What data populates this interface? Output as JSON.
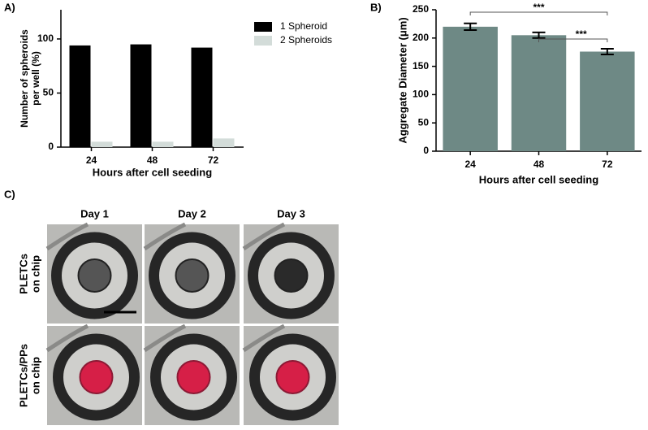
{
  "chart_data": [
    {
      "type": "bar",
      "panel_label": "A)",
      "categories": [
        "24",
        "48",
        "72"
      ],
      "series": [
        {
          "name": "1 Spheroid",
          "color": "#000000",
          "values": [
            94,
            95,
            92
          ]
        },
        {
          "name": "2 Spheroids",
          "color": "#d3dcd9",
          "values": [
            5,
            5,
            8
          ]
        }
      ],
      "ylim": [
        0,
        127
      ],
      "yticks": [
        0,
        50,
        100
      ],
      "ylabel": [
        "Number of spheroids",
        "per well (%)"
      ],
      "xlabel": "Hours after cell seeding",
      "legend": "top-right"
    },
    {
      "type": "bar",
      "panel_label": "B)",
      "categories": [
        "24",
        "48",
        "72"
      ],
      "values": [
        220,
        205,
        176
      ],
      "errors": [
        6,
        5,
        5
      ],
      "color": "#6e8985",
      "ylim": [
        0,
        250
      ],
      "yticks": [
        0,
        50,
        100,
        150,
        200,
        250
      ],
      "ylabel": "Aggregate Diameter (μm)",
      "xlabel": "Hours after cell seeding",
      "significance": [
        {
          "from": 0,
          "to": 2,
          "label": "***"
        },
        {
          "from": 1,
          "to": 2,
          "label": "***"
        }
      ]
    }
  ],
  "panel_c": {
    "panel_label": "C)",
    "columns": [
      "Day 1",
      "Day 2",
      "Day 3"
    ],
    "rows": [
      [
        "PLETCs",
        "on chip"
      ],
      [
        "PLETCs/PPs",
        "on chip"
      ]
    ]
  }
}
